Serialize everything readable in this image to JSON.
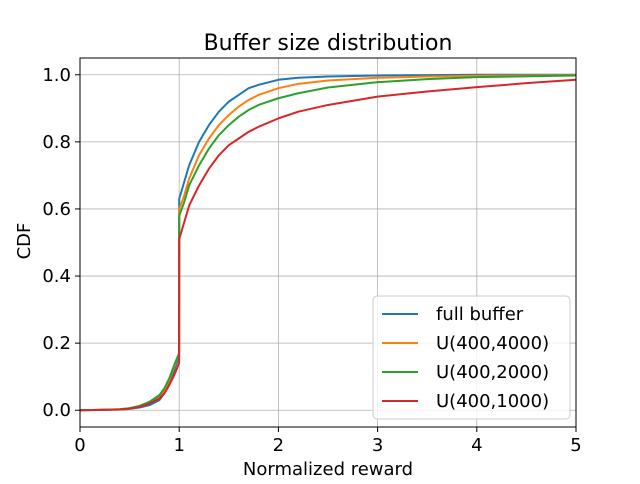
{
  "chart_data": {
    "type": "line",
    "title": "Buffer size distribution",
    "xlabel": "Normalized reward",
    "ylabel": "CDF",
    "xlim": [
      0,
      5
    ],
    "ylim": [
      -0.05,
      1.05
    ],
    "xticks": [
      0,
      1,
      2,
      3,
      4,
      5
    ],
    "xtick_labels": [
      "0",
      "1",
      "2",
      "3",
      "4",
      "5"
    ],
    "yticks": [
      0.0,
      0.2,
      0.4,
      0.6,
      0.8,
      1.0
    ],
    "ytick_labels": [
      "0.0",
      "0.2",
      "0.4",
      "0.6",
      "0.8",
      "1.0"
    ],
    "grid": true,
    "legend_position": "lower-right",
    "series": [
      {
        "name": "full buffer",
        "color": "#1f77b4",
        "x": [
          0.0,
          0.2,
          0.4,
          0.5,
          0.6,
          0.7,
          0.8,
          0.85,
          0.9,
          0.95,
          0.999,
          1.0,
          1.05,
          1.1,
          1.2,
          1.3,
          1.4,
          1.5,
          1.6,
          1.7,
          1.8,
          2.0,
          2.2,
          2.5,
          3.0,
          3.5,
          4.0,
          5.0
        ],
        "y": [
          0.0,
          0.001,
          0.002,
          0.004,
          0.008,
          0.015,
          0.03,
          0.05,
          0.08,
          0.12,
          0.16,
          0.63,
          0.68,
          0.73,
          0.8,
          0.85,
          0.89,
          0.92,
          0.94,
          0.96,
          0.97,
          0.985,
          0.991,
          0.995,
          0.998,
          0.999,
          1.0,
          1.0
        ]
      },
      {
        "name": "U(400,4000)",
        "color": "#ff7f0e",
        "x": [
          0.0,
          0.2,
          0.4,
          0.5,
          0.6,
          0.7,
          0.8,
          0.85,
          0.9,
          0.95,
          0.999,
          1.0,
          1.05,
          1.1,
          1.2,
          1.3,
          1.4,
          1.5,
          1.6,
          1.7,
          1.8,
          2.0,
          2.2,
          2.5,
          3.0,
          3.5,
          4.0,
          5.0
        ],
        "y": [
          0.0,
          0.001,
          0.003,
          0.006,
          0.012,
          0.022,
          0.04,
          0.06,
          0.09,
          0.13,
          0.17,
          0.6,
          0.64,
          0.69,
          0.76,
          0.81,
          0.85,
          0.88,
          0.905,
          0.925,
          0.94,
          0.96,
          0.973,
          0.983,
          0.991,
          0.995,
          0.997,
          0.999
        ]
      },
      {
        "name": "U(400,2000)",
        "color": "#2ca02c",
        "x": [
          0.0,
          0.2,
          0.4,
          0.5,
          0.6,
          0.7,
          0.8,
          0.85,
          0.9,
          0.95,
          0.999,
          1.0,
          1.05,
          1.1,
          1.2,
          1.3,
          1.4,
          1.5,
          1.6,
          1.7,
          1.8,
          2.0,
          2.2,
          2.5,
          3.0,
          3.5,
          4.0,
          5.0
        ],
        "y": [
          0.0,
          0.001,
          0.003,
          0.006,
          0.013,
          0.025,
          0.045,
          0.065,
          0.095,
          0.135,
          0.17,
          0.58,
          0.62,
          0.67,
          0.73,
          0.78,
          0.82,
          0.85,
          0.875,
          0.895,
          0.91,
          0.93,
          0.945,
          0.962,
          0.978,
          0.987,
          0.993,
          0.998
        ]
      },
      {
        "name": "U(400,1000)",
        "color": "#d62728",
        "x": [
          0.0,
          0.2,
          0.4,
          0.5,
          0.6,
          0.7,
          0.8,
          0.85,
          0.9,
          0.95,
          0.999,
          1.0,
          1.05,
          1.1,
          1.2,
          1.3,
          1.4,
          1.5,
          1.6,
          1.7,
          1.8,
          2.0,
          2.2,
          2.5,
          3.0,
          3.5,
          4.0,
          4.5,
          5.0
        ],
        "y": [
          0.0,
          0.001,
          0.002,
          0.005,
          0.01,
          0.02,
          0.035,
          0.05,
          0.075,
          0.105,
          0.14,
          0.51,
          0.56,
          0.61,
          0.67,
          0.72,
          0.76,
          0.79,
          0.81,
          0.83,
          0.845,
          0.87,
          0.89,
          0.91,
          0.935,
          0.95,
          0.963,
          0.975,
          0.985
        ]
      }
    ]
  }
}
